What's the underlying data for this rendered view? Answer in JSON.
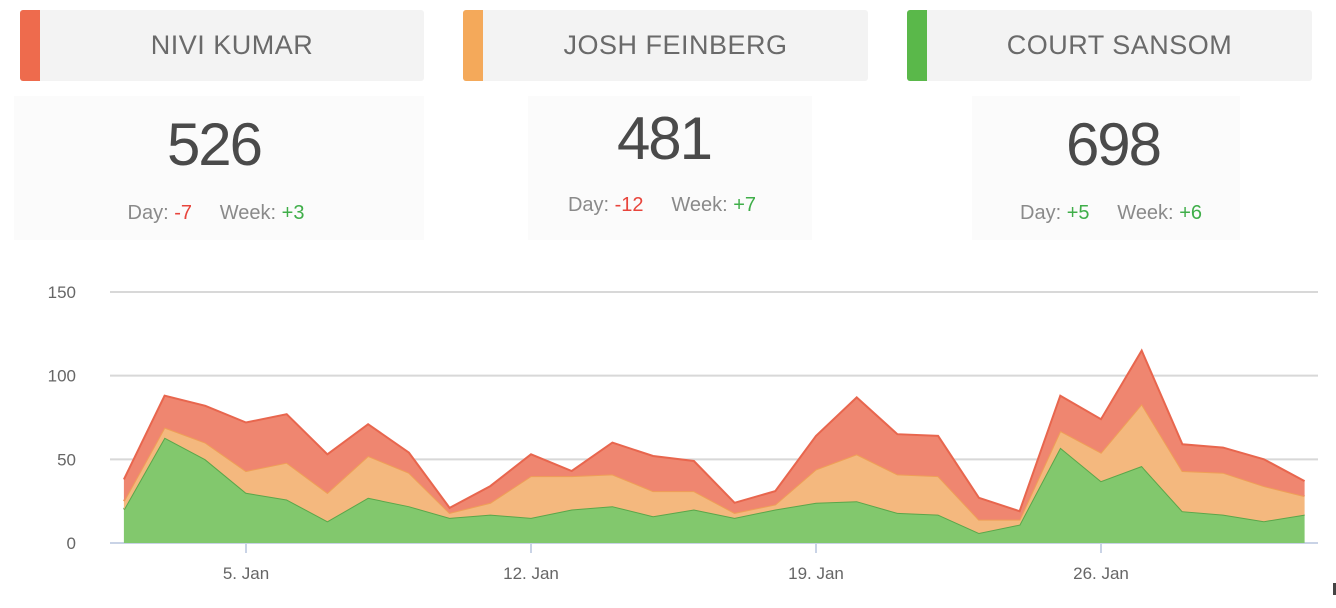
{
  "header": {
    "tabs": [
      {
        "name": "NIVI KUMAR",
        "color": "#ee6b4d"
      },
      {
        "name": "JOSH FEINBERG",
        "color": "#f4a95a"
      },
      {
        "name": "COURT SANSOM",
        "color": "#5ab84a"
      }
    ]
  },
  "stats": [
    {
      "total": "526",
      "day_label": "Day:",
      "day_value": "-7",
      "week_label": "Week:",
      "week_value": "+3"
    },
    {
      "total": "481",
      "day_label": "Day:",
      "day_value": "-12",
      "week_label": "Week:",
      "week_value": "+7"
    },
    {
      "total": "698",
      "day_label": "Day:",
      "day_value": "+5",
      "week_label": "Week:",
      "week_value": "+6"
    }
  ],
  "chart_data": {
    "type": "area",
    "stacked": true,
    "x_tick_labels": [
      "5. Jan",
      "12. Jan",
      "19. Jan",
      "26. Jan"
    ],
    "x_tick_days": [
      5,
      12,
      19,
      26
    ],
    "y_ticks": [
      0,
      50,
      100,
      150
    ],
    "ylim": [
      0,
      150
    ],
    "x_days": [
      2,
      3,
      4,
      5,
      6,
      7,
      8,
      9,
      10,
      11,
      12,
      13,
      14,
      15,
      16,
      17,
      18,
      19,
      20,
      21,
      22,
      23,
      24,
      25,
      26,
      27,
      28,
      29,
      30,
      31
    ],
    "grid": true,
    "series": [
      {
        "name": "COURT SANSOM",
        "color": "#82c86d",
        "line": "#5aa64a",
        "values": [
          20,
          63,
          50,
          30,
          26,
          13,
          27,
          22,
          15,
          17,
          15,
          20,
          22,
          16,
          20,
          15,
          20,
          24,
          25,
          18,
          17,
          6,
          11,
          57,
          37,
          46,
          19,
          17,
          13,
          17
        ]
      },
      {
        "name": "JOSH FEINBERG",
        "color": "#f4b87e",
        "line": "#ef9f57",
        "values": [
          5,
          6,
          10,
          13,
          22,
          17,
          25,
          20,
          3,
          7,
          25,
          20,
          19,
          15,
          11,
          3,
          3,
          20,
          28,
          23,
          23,
          8,
          3,
          10,
          17,
          37,
          24,
          25,
          21,
          11
        ]
      },
      {
        "name": "NIVI KUMAR",
        "color": "#ef8670",
        "line": "#e8664e",
        "values": [
          13,
          19,
          22,
          29,
          29,
          23,
          19,
          12,
          3,
          10,
          13,
          3,
          19,
          21,
          18,
          6,
          8,
          20,
          34,
          24,
          24,
          13,
          5,
          21,
          20,
          32,
          16,
          15,
          16,
          9
        ]
      }
    ]
  }
}
